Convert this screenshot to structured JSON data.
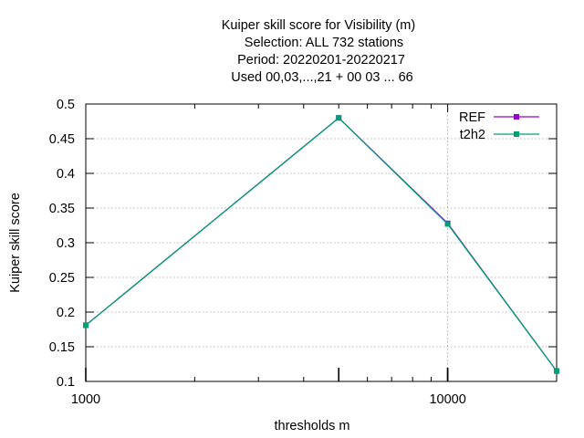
{
  "title_lines": [
    "Kuiper skill score  for Visibility (m)",
    "Selection: ALL     732 stations",
    "Period: 20220201-20220217",
    "Used  00,03,...,21  + 00 03 ... 66"
  ],
  "chart_data": {
    "type": "line",
    "xlabel": "thresholds m",
    "ylabel": "Kuiper skill score",
    "xscale": "log",
    "xlim": [
      1000,
      20000
    ],
    "ylim": [
      0.1,
      0.5
    ],
    "grid": true,
    "legend_position": "top-right",
    "x_ticks": [
      {
        "value": 1000,
        "label": "1000"
      },
      {
        "value": 10000,
        "label": "10000"
      }
    ],
    "y_ticks": [
      {
        "value": 0.1,
        "label": "0.1"
      },
      {
        "value": 0.15,
        "label": "0.15"
      },
      {
        "value": 0.2,
        "label": "0.2"
      },
      {
        "value": 0.25,
        "label": "0.25"
      },
      {
        "value": 0.3,
        "label": "0.3"
      },
      {
        "value": 0.35,
        "label": "0.35"
      },
      {
        "value": 0.4,
        "label": "0.4"
      },
      {
        "value": 0.45,
        "label": "0.45"
      },
      {
        "value": 0.5,
        "label": "0.5"
      }
    ],
    "x": [
      1000,
      5000,
      10000,
      20000
    ],
    "series": [
      {
        "name": "REF",
        "color": "#9400d3",
        "values": [
          0.181,
          0.48,
          0.328,
          0.115
        ]
      },
      {
        "name": "t2h2",
        "color": "#009e73",
        "values": [
          0.181,
          0.48,
          0.327,
          0.115
        ]
      }
    ]
  }
}
